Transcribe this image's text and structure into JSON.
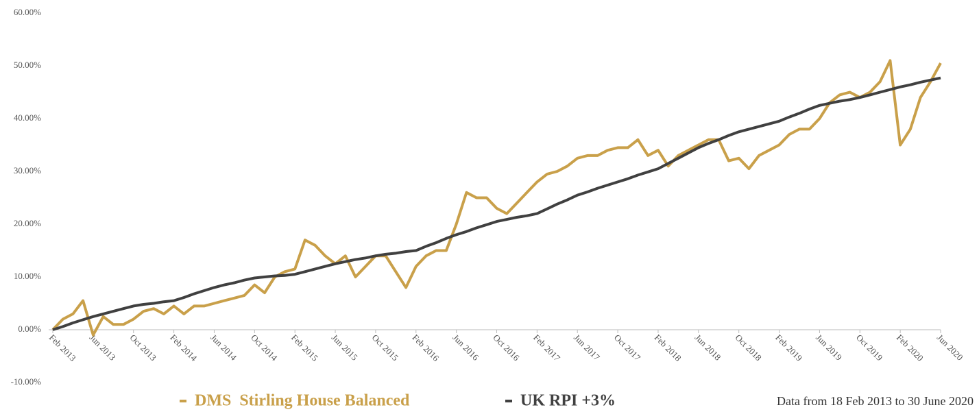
{
  "chart_data": {
    "type": "line",
    "categories": [
      "Feb 2013",
      null,
      null,
      null,
      "Jun 2013",
      null,
      null,
      null,
      "Oct 2013",
      null,
      null,
      null,
      "Feb 2014",
      null,
      null,
      null,
      "Jun 2014",
      null,
      null,
      null,
      "Oct 2014",
      null,
      null,
      null,
      "Feb 2015",
      null,
      null,
      null,
      "Jun 2015",
      null,
      null,
      null,
      "Oct 2015",
      null,
      null,
      null,
      "Feb 2016",
      null,
      null,
      null,
      "Jun 2016",
      null,
      null,
      null,
      "Oct 2016",
      null,
      null,
      null,
      "Feb 2017",
      null,
      null,
      null,
      "Jun 2017",
      null,
      null,
      null,
      "Oct 2017",
      null,
      null,
      null,
      "Feb 2018",
      null,
      null,
      null,
      "Jun 2018",
      null,
      null,
      null,
      "Oct 2018",
      null,
      null,
      null,
      "Feb 2019",
      null,
      null,
      null,
      "Jun 2019",
      null,
      null,
      null,
      "Oct 2019",
      null,
      null,
      null,
      "Feb 2020",
      null,
      null,
      null,
      "Jun 2020"
    ],
    "series": [
      {
        "name": "DMS  Stirling House Balanced",
        "color": "#c9a04a",
        "values": [
          0,
          2,
          3,
          5.5,
          -1,
          2.5,
          1,
          1,
          2,
          3.5,
          4,
          3,
          4.5,
          3,
          4.5,
          4.5,
          5,
          5.5,
          6,
          6.5,
          8.5,
          7,
          10,
          11,
          11.5,
          17,
          16,
          14,
          12.5,
          14,
          10,
          12,
          14,
          14,
          11,
          8,
          12,
          14,
          15,
          15,
          20,
          26,
          25,
          25,
          23,
          22,
          24,
          26,
          28,
          29.5,
          30,
          31,
          32.5,
          33,
          33,
          34,
          34.5,
          34.5,
          36,
          33,
          34,
          31,
          33,
          34,
          35,
          36,
          36,
          32,
          32.5,
          30.5,
          33,
          34,
          35,
          37,
          38,
          38,
          40,
          43,
          44.5,
          45,
          44,
          45,
          47,
          51,
          35,
          38,
          44,
          47,
          50.5
        ]
      },
      {
        "name": "UK RPI +3%",
        "color": "#404040",
        "values": [
          0,
          0.6,
          1.3,
          1.9,
          2.5,
          3,
          3.5,
          4,
          4.5,
          4.8,
          5,
          5.3,
          5.5,
          6.1,
          6.8,
          7.4,
          8,
          8.5,
          8.9,
          9.4,
          9.8,
          10,
          10.2,
          10.3,
          10.5,
          11,
          11.5,
          12,
          12.5,
          12.9,
          13.3,
          13.6,
          14,
          14.3,
          14.5,
          14.8,
          15,
          15.8,
          16.5,
          17.3,
          18,
          18.6,
          19.3,
          19.9,
          20.5,
          20.9,
          21.3,
          21.6,
          22,
          22.9,
          23.8,
          24.6,
          25.5,
          26.1,
          26.8,
          27.4,
          28,
          28.6,
          29.3,
          29.9,
          30.5,
          31.5,
          32.5,
          33.5,
          34.5,
          35.3,
          36,
          36.8,
          37.5,
          38,
          38.5,
          39,
          39.5,
          40.3,
          41,
          41.8,
          42.5,
          42.9,
          43.3,
          43.6,
          44,
          44.5,
          45,
          45.5,
          46,
          46.4,
          46.9,
          47.3,
          47.7
        ]
      }
    ],
    "ylim": [
      -10,
      60
    ],
    "yticks": [
      {
        "value": -10,
        "label": "-10.00%"
      },
      {
        "value": 0,
        "label": "0.00%"
      },
      {
        "value": 10,
        "label": "10.00%"
      },
      {
        "value": 20,
        "label": "20.00%"
      },
      {
        "value": 30,
        "label": "30.00%"
      },
      {
        "value": 40,
        "label": "40.00%"
      },
      {
        "value": 50,
        "label": "50.00%"
      },
      {
        "value": 60,
        "label": "60.00%"
      }
    ],
    "grid": false,
    "legend": "bottom",
    "annotation": "Data from 18 Feb 2013 to 30 June 2020"
  }
}
